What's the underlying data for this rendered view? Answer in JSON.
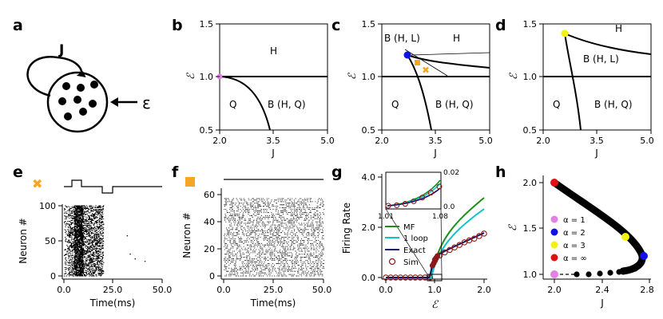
{
  "figure": {
    "panel_letters": [
      "a",
      "b",
      "c",
      "d",
      "e",
      "f",
      "g",
      "h"
    ],
    "panel_a": {
      "j_label": "J",
      "epsilon_label": "ε"
    },
    "phase": {
      "xlabel": "J",
      "ylabel": "ℰ",
      "x_ticks": [
        "2.0",
        "3.5",
        "5.0"
      ],
      "y_ticks": [
        "0.5",
        "1.0",
        "1.5"
      ],
      "b_regions": {
        "h": "H",
        "q": "Q",
        "bq": "B (H, Q)"
      },
      "c_regions": {
        "bhl": "B (H, L)",
        "h": "H",
        "q": "Q",
        "bq": "B (H, Q)"
      },
      "d_regions": {
        "h": "H",
        "bhl": "B (H, L)",
        "q": "Q",
        "bq": "B (H, Q)"
      }
    },
    "raster": {
      "ylabel": "Neuron #",
      "xlabel": "Time(ms)",
      "e_x_ticks": [
        "0.0",
        "25.0",
        "50.0"
      ],
      "e_y_ticks": [
        "0",
        "50",
        "100"
      ],
      "f_x_ticks": [
        "0.0",
        "25.0",
        "50.0"
      ],
      "f_y_ticks": [
        "0",
        "20",
        "40",
        "60"
      ]
    },
    "rate": {
      "ylabel": "Firing Rate",
      "xlabel": "ℰ",
      "x_ticks": [
        "0.0",
        "1.0",
        "2.0"
      ],
      "y_ticks": [
        "0.0",
        "2.0",
        "4.0"
      ],
      "inset_x_ticks": [
        "1.01",
        "1.08"
      ],
      "inset_y_ticks": [
        "0.02",
        "0.0"
      ],
      "legend": [
        "MF",
        "1 loop",
        "Exact",
        "Sim"
      ]
    },
    "path": {
      "xlabel": "J",
      "ylabel": "ℰ",
      "x_ticks": [
        "2.0",
        "2.4",
        "2.8"
      ],
      "y_ticks": [
        "1.0",
        "1.5",
        "2.0"
      ],
      "legend": [
        "α = 1",
        "α = 2",
        "α = 3",
        "α = ∞"
      ]
    }
  },
  "colors": {
    "orange": "#f5a623",
    "violet": "#e47fe4",
    "blue": "#1010e8",
    "yellow": "#f2f20a",
    "red": "#e01010",
    "mf_green": "#1a8f1a",
    "loop_cyan": "#10c0c8",
    "exact_navy": "#101070",
    "sim_maroon": "#8b1a1a"
  },
  "chart_data": [
    {
      "type": "line",
      "panel": "b",
      "title": "",
      "xlabel": "J",
      "ylabel": "ℰ",
      "xlim": [
        2.0,
        5.0
      ],
      "ylim": [
        0.5,
        1.5
      ],
      "series": [
        {
          "name": "boundary-horizontal",
          "x": [
            2.0,
            5.0
          ],
          "y": [
            1.0,
            1.0
          ]
        },
        {
          "name": "boundary-falling",
          "x": [
            2.0,
            2.4,
            2.8,
            3.2,
            3.4
          ],
          "y": [
            1.0,
            0.96,
            0.84,
            0.64,
            0.5
          ]
        }
      ],
      "markers": [
        {
          "x": 2.0,
          "y": 1.0,
          "color": "violet"
        }
      ]
    },
    {
      "type": "line",
      "panel": "c",
      "xlabel": "J",
      "ylabel": "ℰ",
      "xlim": [
        2.0,
        5.0
      ],
      "ylim": [
        0.5,
        1.5
      ],
      "series": [
        {
          "name": "boundary-horizontal",
          "x": [
            2.0,
            5.0
          ],
          "y": [
            1.0,
            1.0
          ]
        },
        {
          "name": "boundary-falling",
          "x": [
            2.8,
            3.0,
            3.2,
            3.3,
            3.4
          ],
          "y": [
            1.2,
            1.05,
            0.8,
            0.65,
            0.5
          ]
        },
        {
          "name": "boundary-upper",
          "x": [
            2.8,
            3.2,
            3.8,
            4.4,
            5.0
          ],
          "y": [
            1.2,
            1.13,
            1.09,
            1.07,
            1.06
          ]
        }
      ],
      "markers": [
        {
          "x": 2.8,
          "y": 1.2,
          "color": "blue"
        },
        {
          "x": 3.0,
          "y": 1.11,
          "color": "orange"
        },
        {
          "x": 3.2,
          "y": 1.05,
          "color": "orange"
        }
      ]
    },
    {
      "type": "line",
      "panel": "d",
      "xlabel": "J",
      "ylabel": "ℰ",
      "xlim": [
        2.0,
        5.0
      ],
      "ylim": [
        0.5,
        1.5
      ],
      "series": [
        {
          "name": "boundary-horizontal",
          "x": [
            2.0,
            5.0
          ],
          "y": [
            1.0,
            1.0
          ]
        },
        {
          "name": "boundary-falling",
          "x": [
            2.6,
            2.75,
            2.9,
            3.0,
            3.1
          ],
          "y": [
            1.4,
            1.1,
            0.8,
            0.62,
            0.5
          ]
        },
        {
          "name": "boundary-upper",
          "x": [
            2.6,
            3.0,
            3.6,
            4.3,
            5.0
          ],
          "y": [
            1.4,
            1.32,
            1.26,
            1.23,
            1.2
          ]
        }
      ],
      "markers": [
        {
          "x": 2.6,
          "y": 1.4,
          "color": "yellow"
        }
      ]
    },
    {
      "type": "scatter",
      "panel": "e",
      "xlabel": "Time(ms)",
      "ylabel": "Neuron #",
      "xlim": [
        0.0,
        50.0
      ],
      "ylim": [
        0,
        100
      ],
      "note": "raster plot; dense band around 5-10 ms, activity until ~20 ms",
      "input_trace": {
        "t": [
          0,
          5,
          5,
          10,
          10,
          20,
          20,
          25,
          25,
          50
        ],
        "level": [
          0,
          0,
          1,
          1,
          0,
          0,
          -1,
          -1,
          0,
          0
        ]
      }
    },
    {
      "type": "scatter",
      "panel": "f",
      "xlabel": "Time(ms)",
      "ylabel": "Neuron #",
      "xlim": [
        0.0,
        50.0
      ],
      "ylim": [
        0,
        60
      ],
      "note": "raster plot; sustained activity of neurons 0-50 over the full interval"
    },
    {
      "type": "line",
      "panel": "g",
      "xlabel": "ℰ",
      "ylabel": "Firing Rate",
      "xlim": [
        0.0,
        2.0
      ],
      "ylim": [
        0.0,
        4.0
      ],
      "series": [
        {
          "name": "MF",
          "x": [
            0,
            0.95,
            1.0,
            1.2,
            1.5,
            1.8,
            2.0
          ],
          "y": [
            0,
            0,
            0,
            1.2,
            2.0,
            2.6,
            3.1
          ]
        },
        {
          "name": "1 loop",
          "x": [
            0,
            0.95,
            1.0,
            1.2,
            1.5,
            1.8,
            2.0
          ],
          "y": [
            0,
            0,
            0,
            1.05,
            1.75,
            2.25,
            2.6
          ]
        },
        {
          "name": "Exact",
          "x": [
            0,
            0.9,
            0.95,
            1.0,
            1.2,
            1.5,
            1.8,
            2.0
          ],
          "y": [
            0,
            0,
            0.05,
            0.7,
            1.0,
            1.3,
            1.55,
            1.75
          ]
        },
        {
          "name": "Sim",
          "x": [
            0,
            0.1,
            0.2,
            0.3,
            0.4,
            0.5,
            0.6,
            0.7,
            0.8,
            0.9,
            1.0,
            1.1,
            1.2,
            1.3,
            1.4,
            1.5,
            1.6,
            1.7,
            1.8,
            1.9,
            2.0
          ],
          "y": [
            0,
            0,
            0,
            0,
            0,
            0,
            0,
            0,
            0,
            0,
            0.7,
            0.88,
            1.0,
            1.1,
            1.2,
            1.3,
            1.4,
            1.48,
            1.55,
            1.65,
            1.75
          ]
        }
      ],
      "inset": {
        "xlim": [
          1.01,
          1.08
        ],
        "ylim": [
          0.0,
          0.02
        ]
      }
    },
    {
      "type": "scatter",
      "panel": "h",
      "xlabel": "J",
      "ylabel": "ℰ",
      "xlim": [
        2.0,
        2.8
      ],
      "ylim": [
        0.9,
        2.1
      ],
      "series": [
        {
          "name": "lower-branch",
          "x": [
            2.0,
            2.2,
            2.3,
            2.4,
            2.45,
            2.5,
            2.55,
            2.6,
            2.65,
            2.7,
            2.73
          ],
          "y": [
            1.0,
            1.0,
            1.0,
            1.0,
            1.0,
            1.01,
            1.02,
            1.03,
            1.05,
            1.07,
            1.1
          ]
        },
        {
          "name": "upper-branch",
          "x": [
            2.0,
            2.2,
            2.4,
            2.58,
            2.7,
            2.75
          ],
          "y": [
            2.0,
            1.8,
            1.6,
            1.4,
            1.28,
            1.2
          ]
        }
      ],
      "markers": [
        {
          "label": "α = 1",
          "x": 2.0,
          "y": 1.0,
          "color": "violet"
        },
        {
          "label": "α = 2",
          "x": 2.75,
          "y": 1.2,
          "color": "blue"
        },
        {
          "label": "α = 3",
          "x": 2.58,
          "y": 1.4,
          "color": "yellow"
        },
        {
          "label": "α = ∞",
          "x": 2.0,
          "y": 2.0,
          "color": "red"
        }
      ]
    }
  ]
}
